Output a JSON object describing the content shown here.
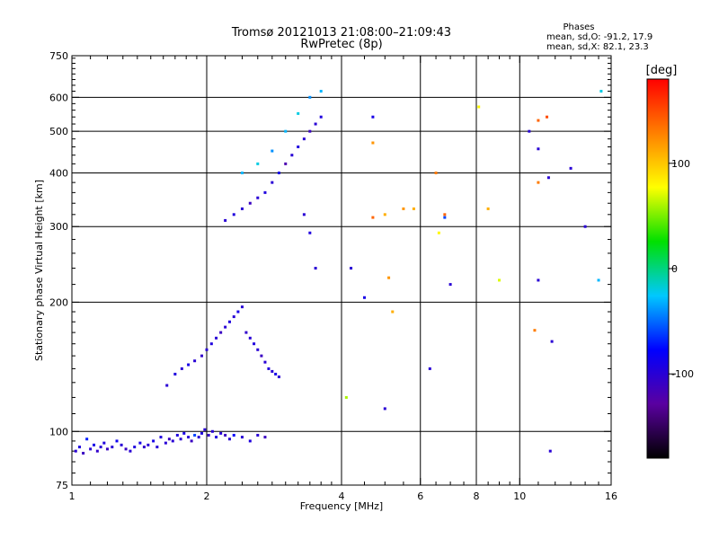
{
  "header": {
    "title": "Tromsø 20121013 21:08:00–21:09:43",
    "subtitle": "RwPretec (8p)",
    "stats_title": "Phases",
    "stats_line1": "mean, sd,O: -91.2, 17.9",
    "stats_line2": "mean, sd,X:  82.1, 23.3"
  },
  "colorbar": {
    "label": "[deg]",
    "range": [
      -180,
      180
    ],
    "ticks": [
      {
        "value": 100,
        "label": "100"
      },
      {
        "value": 0,
        "label": "0"
      },
      {
        "value": -100,
        "label": "-100"
      }
    ],
    "colors": [
      "#000000",
      "#5a00a0",
      "#0000ff",
      "#00c8ff",
      "#00e000",
      "#ffff00",
      "#ff8000",
      "#ff0000"
    ]
  },
  "chart_data": {
    "type": "scatter",
    "xlabel": "Frequency [MHz]",
    "ylabel": "Stationary phase Virtual Height [km]",
    "xscale": "log",
    "yscale": "log",
    "xlim": [
      1,
      16
    ],
    "ylim": [
      75,
      750
    ],
    "grid": true,
    "xticks": [
      {
        "value": 1,
        "label": "1"
      },
      {
        "value": 2,
        "label": "2"
      },
      {
        "value": 4,
        "label": "4"
      },
      {
        "value": 6,
        "label": "6"
      },
      {
        "value": 8,
        "label": "8"
      },
      {
        "value": 10,
        "label": "10"
      },
      {
        "value": 16,
        "label": "16"
      }
    ],
    "yticks": [
      {
        "value": 75,
        "label": "75"
      },
      {
        "value": 100,
        "label": "100"
      },
      {
        "value": 200,
        "label": "200"
      },
      {
        "value": 300,
        "label": "300"
      },
      {
        "value": 400,
        "label": "400"
      },
      {
        "value": 500,
        "label": "500"
      },
      {
        "value": 600,
        "label": "600"
      },
      {
        "value": 750,
        "label": "750"
      }
    ],
    "x_minor_ticks": [
      1.1,
      1.2,
      1.3,
      1.4,
      1.5,
      1.6,
      1.7,
      1.8,
      1.9,
      2.2,
      2.4,
      2.6,
      2.8,
      3,
      3.2,
      3.4,
      3.6,
      3.8,
      4.5,
      5,
      5.5,
      6.5,
      7,
      7.5,
      8.5,
      9,
      9.5,
      11,
      12,
      13,
      14,
      15
    ],
    "y_minor_ticks": [
      80,
      85,
      90,
      95,
      110,
      120,
      130,
      140,
      150,
      160,
      170,
      180,
      190,
      220,
      240,
      260,
      280,
      320,
      340,
      360,
      380,
      420,
      440,
      460,
      480,
      520,
      540,
      560,
      580,
      620,
      640,
      660,
      680,
      700,
      720,
      740
    ],
    "x_gridlines": [
      2,
      4,
      6,
      8,
      10
    ],
    "y_gridlines": [
      100,
      200,
      300,
      400,
      500,
      600
    ],
    "points": [
      {
        "x": 1.02,
        "y": 90,
        "p": -100
      },
      {
        "x": 1.04,
        "y": 92,
        "p": -95
      },
      {
        "x": 1.06,
        "y": 89,
        "p": -110
      },
      {
        "x": 1.08,
        "y": 96,
        "p": -70
      },
      {
        "x": 1.1,
        "y": 91,
        "p": -100
      },
      {
        "x": 1.12,
        "y": 93,
        "p": -90
      },
      {
        "x": 1.14,
        "y": 90,
        "p": -105
      },
      {
        "x": 1.16,
        "y": 92,
        "p": -100
      },
      {
        "x": 1.18,
        "y": 94,
        "p": -95
      },
      {
        "x": 1.2,
        "y": 91,
        "p": -110
      },
      {
        "x": 1.23,
        "y": 92,
        "p": -100
      },
      {
        "x": 1.26,
        "y": 95,
        "p": -85
      },
      {
        "x": 1.29,
        "y": 93,
        "p": -100
      },
      {
        "x": 1.32,
        "y": 91,
        "p": -110
      },
      {
        "x": 1.35,
        "y": 90,
        "p": -100
      },
      {
        "x": 1.38,
        "y": 92,
        "p": -95
      },
      {
        "x": 1.42,
        "y": 94,
        "p": -90
      },
      {
        "x": 1.45,
        "y": 92,
        "p": -105
      },
      {
        "x": 1.48,
        "y": 93,
        "p": -100
      },
      {
        "x": 1.52,
        "y": 95,
        "p": -90
      },
      {
        "x": 1.55,
        "y": 92,
        "p": -100
      },
      {
        "x": 1.58,
        "y": 97,
        "p": -95
      },
      {
        "x": 1.62,
        "y": 94,
        "p": -100
      },
      {
        "x": 1.65,
        "y": 96,
        "p": -110
      },
      {
        "x": 1.68,
        "y": 95,
        "p": -100
      },
      {
        "x": 1.72,
        "y": 98,
        "p": -95
      },
      {
        "x": 1.75,
        "y": 96,
        "p": -100
      },
      {
        "x": 1.78,
        "y": 99,
        "p": -90
      },
      {
        "x": 1.82,
        "y": 97,
        "p": -100
      },
      {
        "x": 1.85,
        "y": 95,
        "p": -110
      },
      {
        "x": 1.88,
        "y": 98,
        "p": -60
      },
      {
        "x": 1.92,
        "y": 97,
        "p": -100
      },
      {
        "x": 1.95,
        "y": 99,
        "p": -95
      },
      {
        "x": 1.98,
        "y": 101,
        "p": -100
      },
      {
        "x": 2.02,
        "y": 98,
        "p": -105
      },
      {
        "x": 2.06,
        "y": 100,
        "p": -100
      },
      {
        "x": 2.1,
        "y": 97,
        "p": -95
      },
      {
        "x": 2.15,
        "y": 99,
        "p": -100
      },
      {
        "x": 2.2,
        "y": 98,
        "p": -110
      },
      {
        "x": 2.25,
        "y": 96,
        "p": -100
      },
      {
        "x": 2.3,
        "y": 98,
        "p": -80
      },
      {
        "x": 2.4,
        "y": 97,
        "p": -100
      },
      {
        "x": 2.5,
        "y": 95,
        "p": -95
      },
      {
        "x": 2.6,
        "y": 98,
        "p": -100
      },
      {
        "x": 2.7,
        "y": 97,
        "p": -110
      },
      {
        "x": 1.63,
        "y": 128,
        "p": -100
      },
      {
        "x": 1.7,
        "y": 136,
        "p": -95
      },
      {
        "x": 1.76,
        "y": 140,
        "p": -100
      },
      {
        "x": 1.82,
        "y": 143,
        "p": -90
      },
      {
        "x": 1.88,
        "y": 146,
        "p": -100
      },
      {
        "x": 1.95,
        "y": 150,
        "p": -105
      },
      {
        "x": 2.0,
        "y": 155,
        "p": -100
      },
      {
        "x": 2.05,
        "y": 160,
        "p": -95
      },
      {
        "x": 2.1,
        "y": 165,
        "p": -100
      },
      {
        "x": 2.15,
        "y": 170,
        "p": -110
      },
      {
        "x": 2.2,
        "y": 175,
        "p": -100
      },
      {
        "x": 2.25,
        "y": 180,
        "p": -95
      },
      {
        "x": 2.3,
        "y": 185,
        "p": -100
      },
      {
        "x": 2.35,
        "y": 190,
        "p": -90
      },
      {
        "x": 2.4,
        "y": 195,
        "p": -100
      },
      {
        "x": 2.45,
        "y": 170,
        "p": -105
      },
      {
        "x": 2.5,
        "y": 165,
        "p": -100
      },
      {
        "x": 2.55,
        "y": 160,
        "p": -95
      },
      {
        "x": 2.6,
        "y": 155,
        "p": -100
      },
      {
        "x": 2.65,
        "y": 150,
        "p": -110
      },
      {
        "x": 2.7,
        "y": 145,
        "p": -100
      },
      {
        "x": 2.75,
        "y": 140,
        "p": -95
      },
      {
        "x": 2.8,
        "y": 138,
        "p": -100
      },
      {
        "x": 2.85,
        "y": 136,
        "p": -90
      },
      {
        "x": 2.9,
        "y": 134,
        "p": -100
      },
      {
        "x": 2.2,
        "y": 310,
        "p": -100
      },
      {
        "x": 2.3,
        "y": 320,
        "p": -95
      },
      {
        "x": 2.4,
        "y": 330,
        "p": -100
      },
      {
        "x": 2.5,
        "y": 340,
        "p": -110
      },
      {
        "x": 2.6,
        "y": 350,
        "p": -100
      },
      {
        "x": 2.7,
        "y": 360,
        "p": -95
      },
      {
        "x": 2.8,
        "y": 380,
        "p": -100
      },
      {
        "x": 2.9,
        "y": 400,
        "p": -90
      },
      {
        "x": 3.0,
        "y": 420,
        "p": -120
      },
      {
        "x": 3.1,
        "y": 440,
        "p": -100
      },
      {
        "x": 3.2,
        "y": 460,
        "p": -95
      },
      {
        "x": 3.3,
        "y": 480,
        "p": -100
      },
      {
        "x": 3.4,
        "y": 500,
        "p": -110
      },
      {
        "x": 3.5,
        "y": 520,
        "p": -100
      },
      {
        "x": 3.6,
        "y": 540,
        "p": -95
      },
      {
        "x": 2.4,
        "y": 400,
        "p": -30
      },
      {
        "x": 2.6,
        "y": 420,
        "p": -20
      },
      {
        "x": 2.8,
        "y": 450,
        "p": -40
      },
      {
        "x": 3.0,
        "y": 500,
        "p": -30
      },
      {
        "x": 3.2,
        "y": 550,
        "p": -20
      },
      {
        "x": 3.4,
        "y": 600,
        "p": -40
      },
      {
        "x": 3.6,
        "y": 620,
        "p": -30
      },
      {
        "x": 3.3,
        "y": 320,
        "p": -100
      },
      {
        "x": 3.4,
        "y": 290,
        "p": -95
      },
      {
        "x": 3.5,
        "y": 240,
        "p": -100
      },
      {
        "x": 4.7,
        "y": 540,
        "p": -90
      },
      {
        "x": 4.7,
        "y": 470,
        "p": 120
      },
      {
        "x": 4.7,
        "y": 315,
        "p": 140
      },
      {
        "x": 5.0,
        "y": 320,
        "p": 110
      },
      {
        "x": 5.1,
        "y": 228,
        "p": 120
      },
      {
        "x": 5.2,
        "y": 190,
        "p": 110
      },
      {
        "x": 4.5,
        "y": 205,
        "p": -90
      },
      {
        "x": 4.2,
        "y": 240,
        "p": -100
      },
      {
        "x": 4.1,
        "y": 120,
        "p": 60
      },
      {
        "x": 5.0,
        "y": 113,
        "p": -100
      },
      {
        "x": 5.5,
        "y": 330,
        "p": 120
      },
      {
        "x": 5.8,
        "y": 330,
        "p": 110
      },
      {
        "x": 6.5,
        "y": 400,
        "p": 130
      },
      {
        "x": 6.6,
        "y": 290,
        "p": 80
      },
      {
        "x": 6.8,
        "y": 320,
        "p": 140
      },
      {
        "x": 7.0,
        "y": 220,
        "p": -100
      },
      {
        "x": 6.8,
        "y": 315,
        "p": -60
      },
      {
        "x": 8.1,
        "y": 570,
        "p": 80
      },
      {
        "x": 8.5,
        "y": 330,
        "p": 110
      },
      {
        "x": 9.0,
        "y": 225,
        "p": 70
      },
      {
        "x": 10.5,
        "y": 500,
        "p": -100
      },
      {
        "x": 11.0,
        "y": 530,
        "p": 140
      },
      {
        "x": 11.5,
        "y": 540,
        "p": 150
      },
      {
        "x": 11.0,
        "y": 455,
        "p": -100
      },
      {
        "x": 11.0,
        "y": 380,
        "p": 130
      },
      {
        "x": 11.6,
        "y": 390,
        "p": -100
      },
      {
        "x": 11.0,
        "y": 225,
        "p": -100
      },
      {
        "x": 10.8,
        "y": 172,
        "p": 130
      },
      {
        "x": 11.8,
        "y": 162,
        "p": -100
      },
      {
        "x": 11.7,
        "y": 90,
        "p": -100
      },
      {
        "x": 13.0,
        "y": 410,
        "p": -100
      },
      {
        "x": 14.0,
        "y": 300,
        "p": -100
      },
      {
        "x": 15.0,
        "y": 225,
        "p": -30
      },
      {
        "x": 15.2,
        "y": 620,
        "p": -20
      },
      {
        "x": 6.3,
        "y": 140,
        "p": -100
      }
    ]
  }
}
